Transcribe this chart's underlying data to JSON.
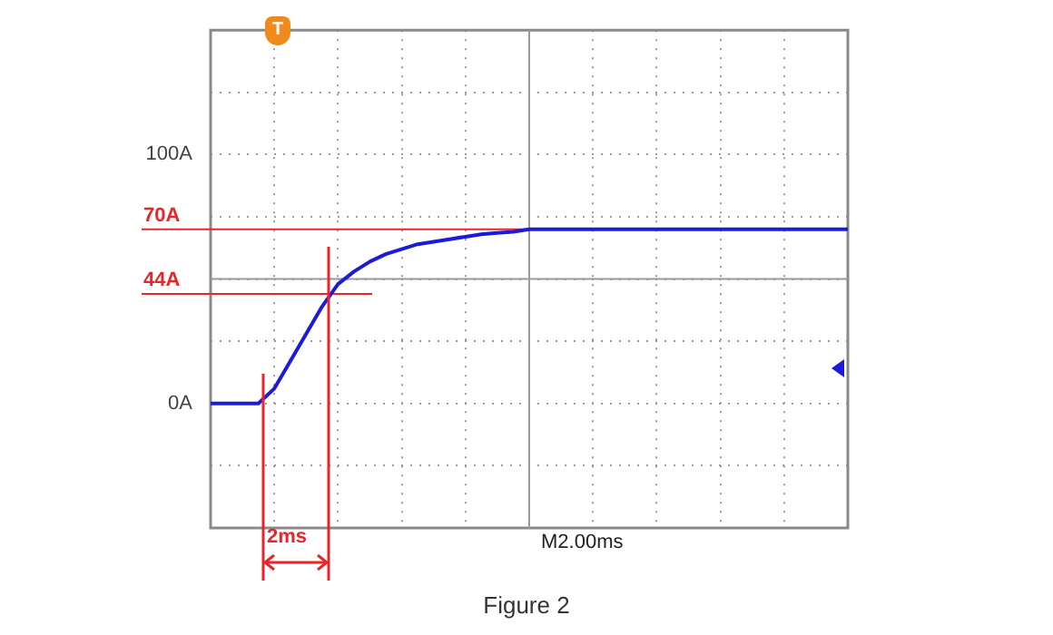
{
  "chart_data": {
    "type": "line",
    "categories": [
      null,
      null,
      null,
      null,
      null,
      null,
      null,
      null,
      null,
      null,
      null,
      null,
      null,
      null,
      null,
      null,
      null,
      null,
      null,
      null,
      null,
      null,
      null,
      null,
      null,
      null,
      null,
      null,
      null,
      null,
      null,
      null,
      null,
      null,
      null,
      null,
      null,
      null,
      null,
      null,
      null
    ],
    "series": [
      {
        "color": "#1c1cd8",
        "values": [
          0,
          0,
          0,
          0,
          6,
          17,
          28,
          39,
          48,
          53,
          57,
          60,
          62,
          64,
          65,
          66,
          67,
          68,
          68.5,
          69,
          70,
          70,
          70,
          70,
          70,
          70,
          70,
          70,
          70,
          70,
          70,
          70,
          70,
          70,
          70,
          70,
          70,
          70,
          70,
          70,
          70
        ]
      }
    ],
    "ylim": [
      -50,
      150
    ],
    "yticks": [
      {
        "value": -50,
        "label": null
      },
      {
        "value": -25,
        "label": null
      },
      {
        "value": 0,
        "label": "0A"
      },
      {
        "value": 25,
        "label": null
      },
      {
        "value": 50,
        "label": null
      },
      {
        "value": 75,
        "label": null
      },
      {
        "value": 100,
        "label": "100A"
      },
      {
        "value": 125,
        "label": null
      },
      {
        "value": 150,
        "label": null
      }
    ],
    "ref_lines": [
      {
        "axis": "y",
        "value": 70,
        "label": "70A",
        "color": "#e8262a"
      },
      {
        "axis": "y",
        "value": 44,
        "label": "44A",
        "color": "#e8262a"
      }
    ],
    "annotations": [
      "T",
      "M2.00ms",
      "2ms",
      "Figure 2"
    ],
    "grid": true,
    "tick_labels": "y",
    "marker": "none",
    "line_style": "solid",
    "legend": false
  }
}
